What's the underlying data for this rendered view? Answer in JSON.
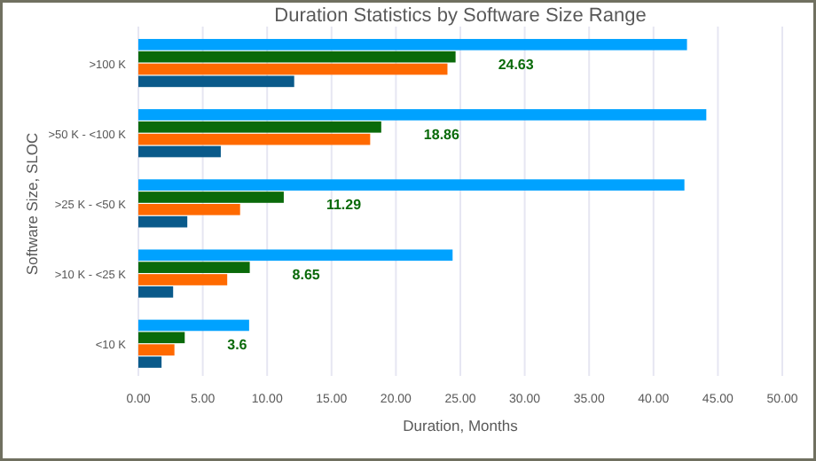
{
  "chart_data": {
    "type": "bar",
    "orientation": "horizontal",
    "title": "Duration Statistics by Software Size Range",
    "xlabel": "Duration, Months",
    "ylabel": "Software Size, SLOC",
    "categories": [
      ">100 K",
      ">50 K - <100 K",
      ">25 K - <50 K",
      ">10 K - <25 K",
      "<10 K"
    ],
    "series": [
      {
        "color": "#00a2ff",
        "values": [
          42.6,
          44.1,
          42.4,
          24.4,
          8.6
        ]
      },
      {
        "color": "#0a6a0a",
        "values": [
          24.63,
          18.86,
          11.29,
          8.65,
          3.6
        ],
        "value_labels": [
          "24.63",
          "18.86",
          "11.29",
          "8.65",
          "3.6"
        ]
      },
      {
        "color": "#ff6a00",
        "values": [
          24.0,
          18.0,
          7.9,
          6.9,
          2.8
        ]
      },
      {
        "color": "#0a5a8a",
        "values": [
          12.1,
          6.4,
          3.8,
          2.7,
          1.8
        ]
      }
    ],
    "xlim": [
      0,
      50
    ],
    "xticks": [
      {
        "value": 0,
        "label": "0.00"
      },
      {
        "value": 5,
        "label": "5.00"
      },
      {
        "value": 10,
        "label": "10.00"
      },
      {
        "value": 15,
        "label": "15.00"
      },
      {
        "value": 20,
        "label": "20.00"
      },
      {
        "value": 25,
        "label": "25.00"
      },
      {
        "value": 30,
        "label": "30.00"
      },
      {
        "value": 35,
        "label": "35.00"
      },
      {
        "value": 40,
        "label": "40.00"
      },
      {
        "value": 45,
        "label": "45.00"
      },
      {
        "value": 50,
        "label": "50.00"
      }
    ],
    "grid": "x"
  }
}
